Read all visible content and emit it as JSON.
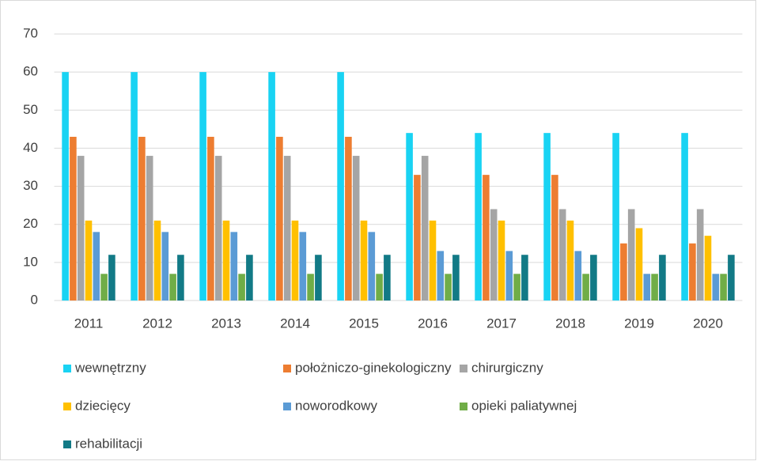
{
  "chart_data": {
    "type": "bar",
    "categories": [
      "2011",
      "2012",
      "2013",
      "2014",
      "2015",
      "2016",
      "2017",
      "2018",
      "2019",
      "2020"
    ],
    "series": [
      {
        "name": "wewnętrzny",
        "color": "#19d3f3",
        "values": [
          60,
          60,
          60,
          60,
          60,
          44,
          44,
          44,
          44,
          44
        ]
      },
      {
        "name": "położniczo-ginekologiczny",
        "color": "#ed7d31",
        "values": [
          43,
          43,
          43,
          43,
          43,
          33,
          33,
          33,
          15,
          15
        ]
      },
      {
        "name": "chirurgiczny",
        "color": "#a5a5a5",
        "values": [
          38,
          38,
          38,
          38,
          38,
          38,
          24,
          24,
          24,
          24
        ]
      },
      {
        "name": "dziecięcy",
        "color": "#ffc000",
        "values": [
          21,
          21,
          21,
          21,
          21,
          21,
          21,
          21,
          19,
          17
        ]
      },
      {
        "name": "noworodkowy",
        "color": "#5b9bd5",
        "values": [
          18,
          18,
          18,
          18,
          18,
          13,
          13,
          13,
          7,
          7
        ]
      },
      {
        "name": "opieki paliatywnej",
        "color": "#70ad47",
        "values": [
          7,
          7,
          7,
          7,
          7,
          7,
          7,
          7,
          7,
          7
        ]
      },
      {
        "name": "rehabilitacji",
        "color": "#127a86",
        "values": [
          12,
          12,
          12,
          12,
          12,
          12,
          12,
          12,
          12,
          12
        ]
      }
    ],
    "ylim": [
      0,
      70
    ],
    "yticks": [
      0,
      10,
      20,
      30,
      40,
      50,
      60,
      70
    ],
    "grid": true,
    "legend": "bottom"
  }
}
